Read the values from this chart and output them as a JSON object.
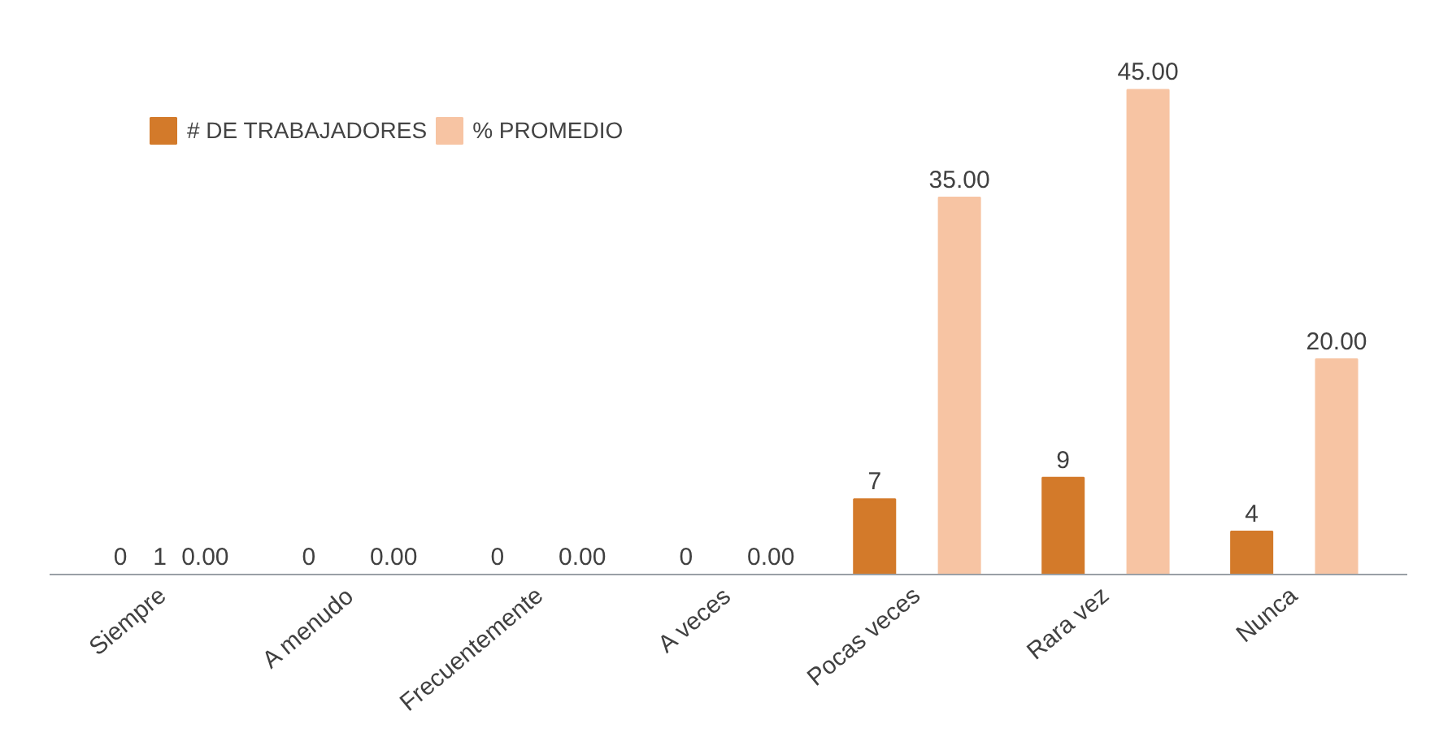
{
  "chart_data": {
    "type": "bar",
    "categories": [
      "Siempre",
      "A menudo",
      "Frecuentemente",
      "A veces",
      "Pocas veces",
      "Rara vez",
      "Nunca"
    ],
    "series": [
      {
        "name": "# DE TRABAJADORES",
        "color": "#d37a2a",
        "values": [
          0,
          0,
          0,
          0,
          7,
          9,
          4
        ],
        "value_labels": [
          "0",
          "0",
          "0",
          "0",
          "7",
          "9",
          "4"
        ]
      },
      {
        "name": "% PROMEDIO",
        "color": "#f7c4a3",
        "values": [
          0,
          0,
          0,
          0,
          35,
          45,
          20
        ],
        "value_labels": [
          "0.00",
          "0.00",
          "0.00",
          "0.00",
          "35.00",
          "45.00",
          "20.00"
        ]
      }
    ],
    "annotations": [
      "1"
    ],
    "tick_labels": "x",
    "grid": false,
    "legend": "top left"
  }
}
